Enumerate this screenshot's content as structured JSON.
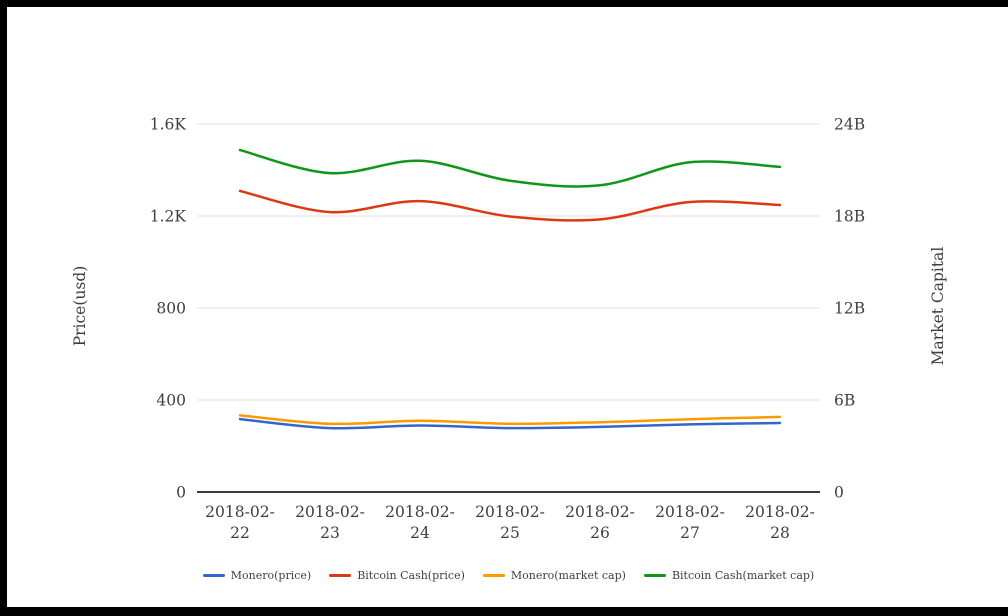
{
  "chart_data": {
    "type": "line",
    "smooth": true,
    "grid": true,
    "legend_position": "bottom",
    "x_categories": [
      "2018-02-22",
      "2018-02-23",
      "2018-02-24",
      "2018-02-25",
      "2018-02-26",
      "2018-02-27",
      "2018-02-28"
    ],
    "left_axis": {
      "title": "Price(usd)",
      "tick_labels": [
        "0",
        "400",
        "800",
        "1.2K",
        "1.6K"
      ],
      "tick_values": [
        0,
        400,
        800,
        1200,
        1600
      ],
      "range": [
        0,
        1600
      ]
    },
    "right_axis": {
      "title": "Market Capital",
      "tick_labels": [
        "0",
        "6B",
        "12B",
        "18B",
        "24B"
      ],
      "tick_values": [
        0,
        6,
        12,
        18,
        24
      ],
      "range": [
        0,
        24
      ]
    },
    "series": [
      {
        "name": "Monero(price)",
        "axis": "left",
        "color": "#3366cc",
        "values": [
          317,
          278,
          289,
          278,
          283,
          294,
          300
        ]
      },
      {
        "name": "Bitcoin Cash(price)",
        "axis": "left",
        "color": "#dc3912",
        "values": [
          1309,
          1217,
          1265,
          1198,
          1185,
          1261,
          1248
        ]
      },
      {
        "name": "Monero(market cap)",
        "axis": "right",
        "color": "#ff9900",
        "values": [
          5.0,
          4.45,
          4.65,
          4.45,
          4.55,
          4.75,
          4.9
        ]
      },
      {
        "name": "Bitcoin Cash(market cap)",
        "axis": "right",
        "color": "#109618",
        "values": [
          22.3,
          20.8,
          21.6,
          20.3,
          20.0,
          21.5,
          21.2
        ]
      }
    ]
  },
  "styles": {
    "grid_color": "#e0e0e0",
    "baseline_color": "#3a3a3a",
    "text_color": "#3e3e3e",
    "frame_color": "#000000",
    "background": "#ffffff"
  }
}
